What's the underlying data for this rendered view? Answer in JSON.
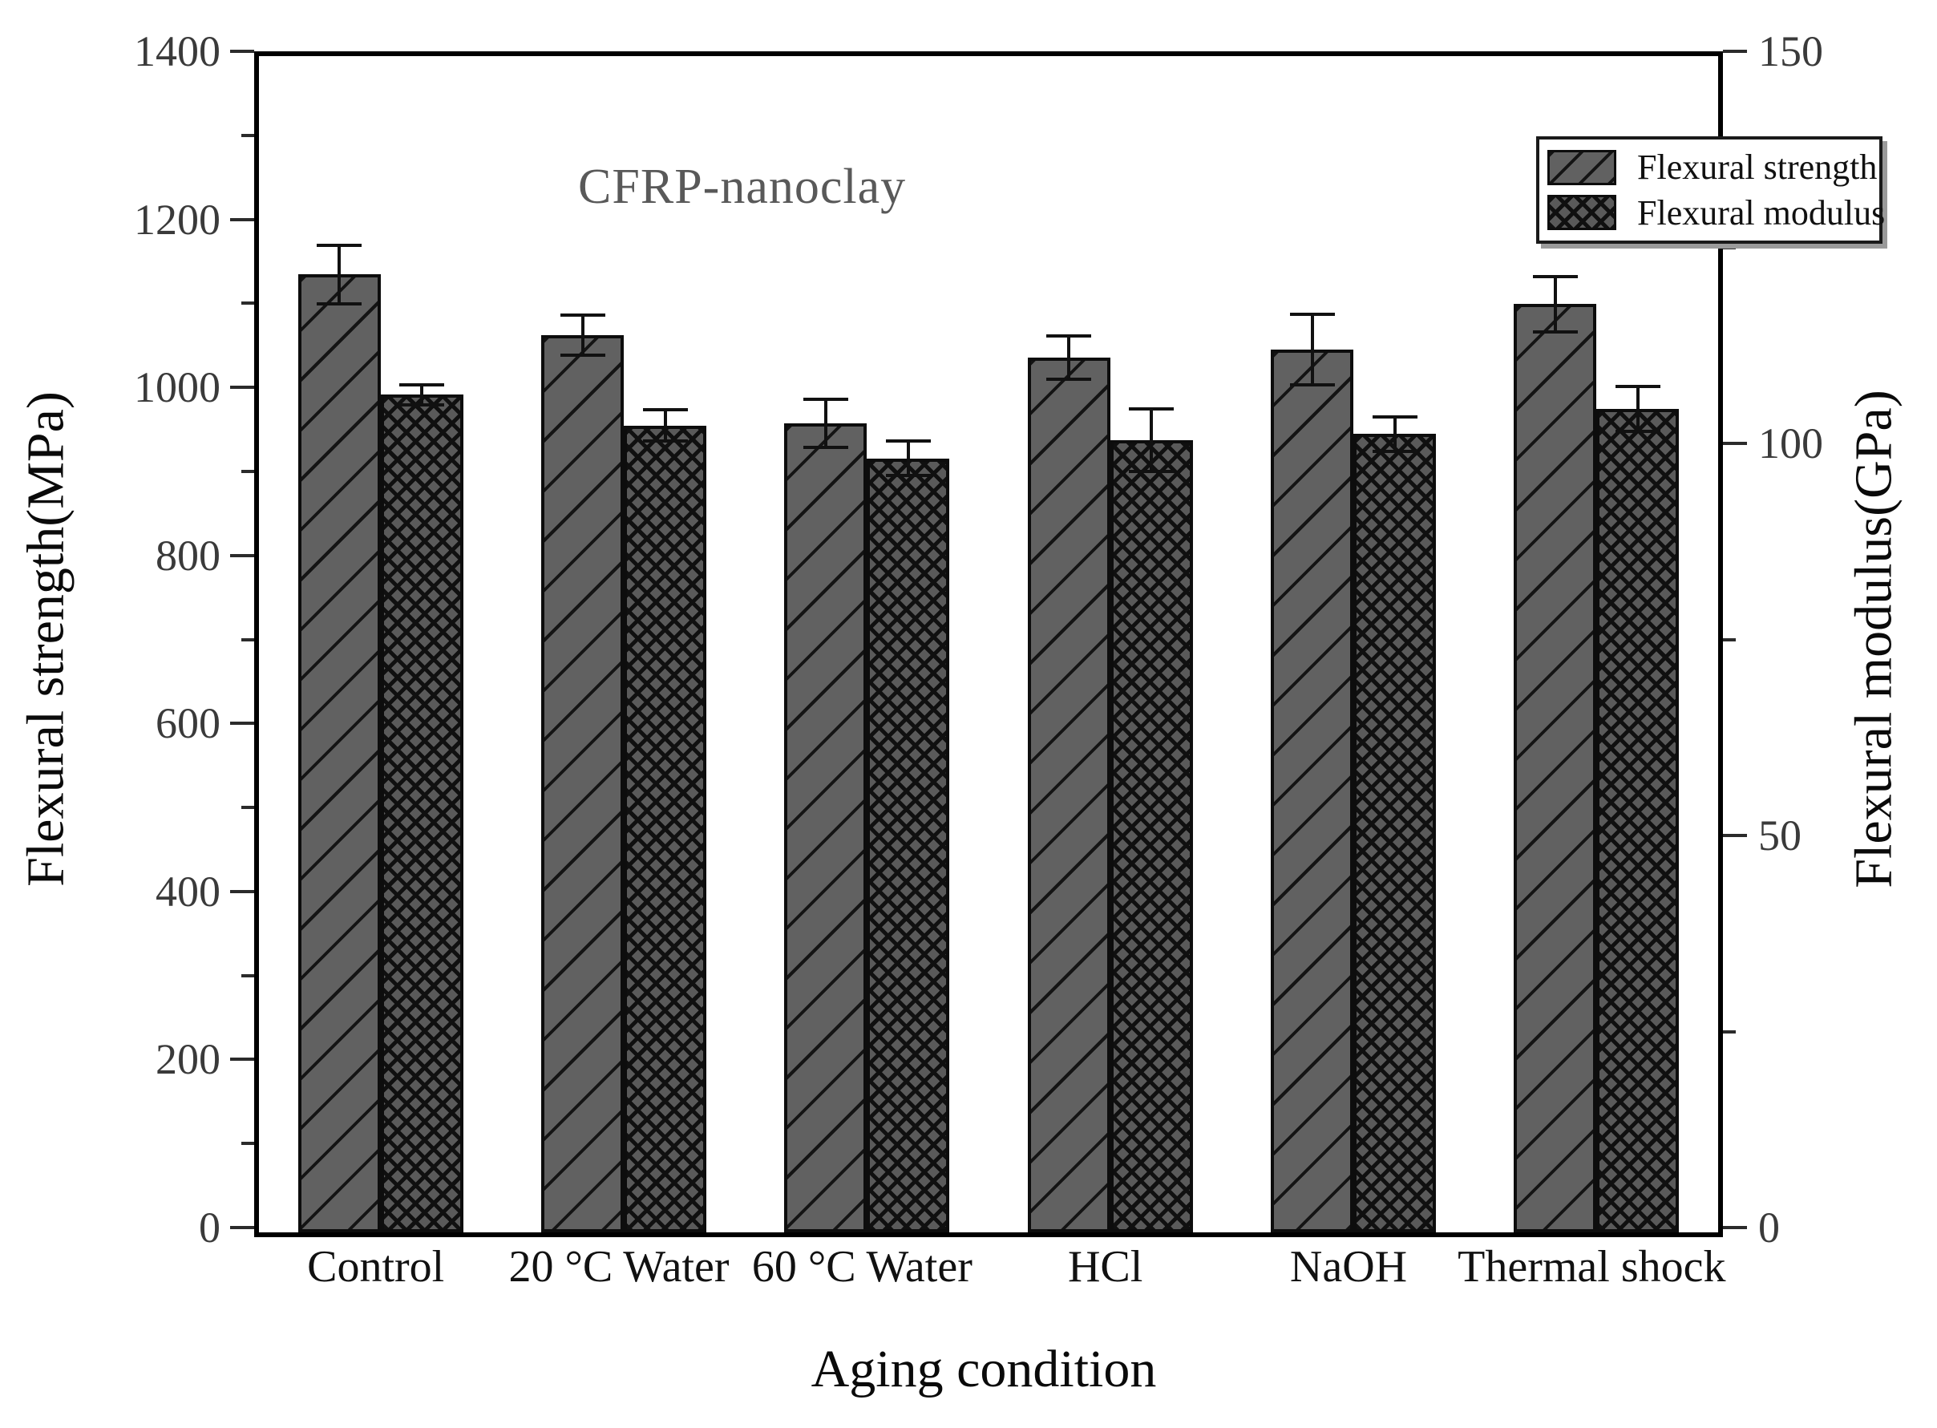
{
  "figure": {
    "annotation": "CFRP-nanoclay",
    "x_title": "Aging condition",
    "y_title_left": "Flexural strength(MPa)",
    "y_title_right": "Flexural modulus(GPa)"
  },
  "colors": {
    "bar_fill": "#616161",
    "hatch_line": "#141414",
    "axis_frame": "#000000",
    "tick_label": "#3a3a3a",
    "annotation_gray": "#595959"
  },
  "chart_data": {
    "type": "bar",
    "title": "CFRP-nanoclay",
    "xlabel": "Aging condition",
    "ylabel_left": "Flexural strength(MPa)",
    "ylabel_right": "Flexural modulus(GPa)",
    "categories": [
      "Control",
      "20 °C Water",
      "60 °C Water",
      "HCl",
      "NaOH",
      "Thermal shock"
    ],
    "series": [
      {
        "name": "Flexural strength",
        "axis": "left",
        "unit": "MPa",
        "pattern": "diagonal-hatch",
        "values": [
          1140,
          1068,
          963,
          1041,
          1051,
          1105
        ],
        "errors": [
          35,
          24,
          29,
          26,
          42,
          33
        ]
      },
      {
        "name": "Flexural modulus",
        "axis": "right",
        "unit": "GPa",
        "pattern": "cross-hatch",
        "values": [
          106.8,
          102.9,
          98.7,
          101.0,
          101.8,
          105.0
        ],
        "errors": [
          1.3,
          2.0,
          2.2,
          4.0,
          2.2,
          2.9
        ]
      }
    ],
    "left_axis": {
      "min": 0,
      "max": 1400,
      "major_tick_labels": [
        "1400",
        "1200",
        "1000",
        "800",
        "600",
        "400",
        "200",
        "0"
      ],
      "major_step": 200,
      "minor_step": 100
    },
    "right_axis": {
      "min": 0,
      "max": 150,
      "major_tick_labels": [
        "150",
        "100",
        "50",
        "0"
      ],
      "major_step": 50,
      "minor_step": 25
    },
    "grid": false,
    "legend_position": "top-right-inside"
  }
}
